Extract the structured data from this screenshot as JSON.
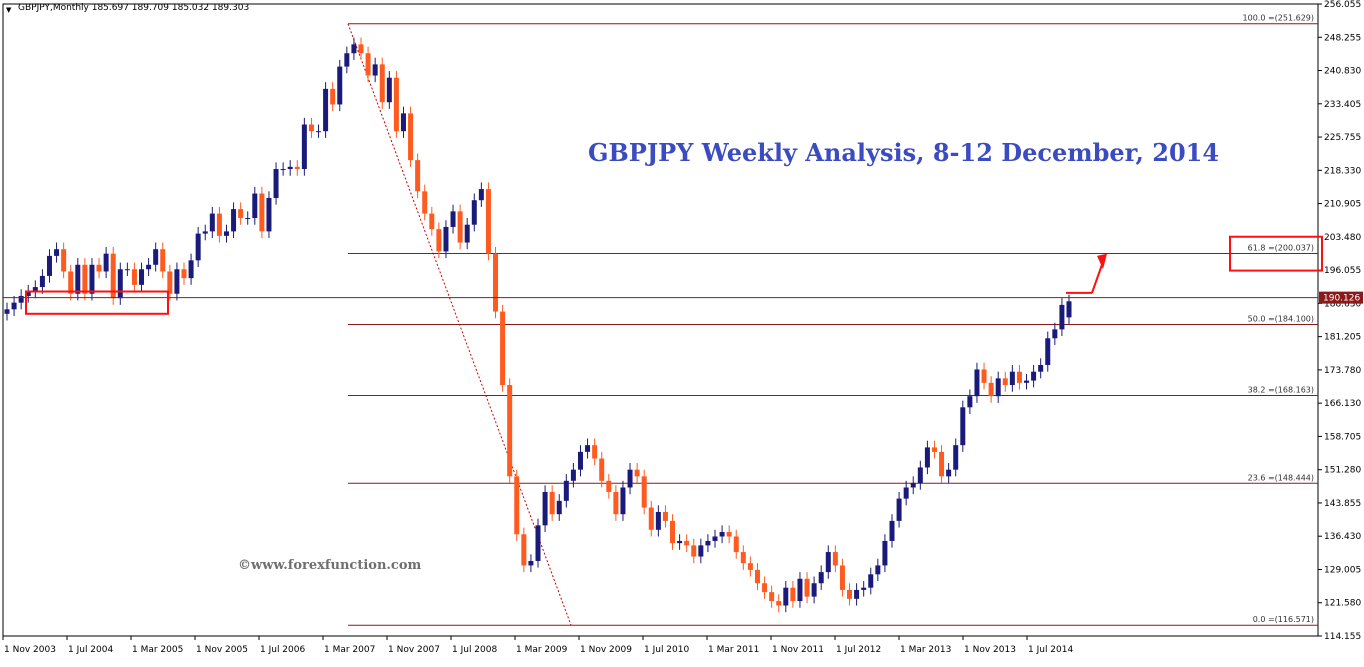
{
  "header": {
    "symbol_info": "GBPJPY,Monthly  185.697 189.709 185.032 189.303"
  },
  "title": "GBPJPY Weekly Analysis, 8-12 December, 2014",
  "watermark": "©www.forexfunction.com",
  "colors": {
    "bull": "#1a1a7a",
    "bear": "#ff5a1f",
    "fib": "#8b1a1a",
    "accent": "#ff1010",
    "title": "#3b4cc0"
  },
  "chart_data": {
    "type": "candlestick",
    "ylim": [
      114.155,
      256.055
    ],
    "y_ticks": [
      "256.055",
      "248.255",
      "240.830",
      "233.405",
      "225.755",
      "218.330",
      "210.905",
      "203.480",
      "196.055",
      "188.630",
      "181.205",
      "173.780",
      "166.130",
      "158.705",
      "151.280",
      "143.855",
      "136.430",
      "129.005",
      "121.580",
      "114.155"
    ],
    "x_ticks": [
      "1 Nov 2003",
      "1 Jul 2004",
      "1 Mar 2005",
      "1 Nov 2005",
      "1 Jul 2006",
      "1 Mar 2007",
      "1 Nov 2007",
      "1 Jul 2008",
      "1 Mar 2009",
      "1 Nov 2009",
      "1 Jul 2010",
      "1 Mar 2011",
      "1 Nov 2011",
      "1 Jul 2012",
      "1 Mar 2013",
      "1 Nov 2013",
      "1 Jul 2014"
    ],
    "current_price_label": "190.126",
    "fib_levels": [
      {
        "label": "100.0 =(251.629)",
        "value": 251.629
      },
      {
        "label": "61.8 =(200.037)",
        "value": 200.037
      },
      {
        "label": "50.0 =(184.100)",
        "value": 184.1
      },
      {
        "label": "38.2 =(168.163)",
        "value": 168.163
      },
      {
        "label": "23.6 =(148.444)",
        "value": 148.444
      },
      {
        "label": "0.0 =(116.571)",
        "value": 116.571
      }
    ],
    "closes": [
      187.5,
      189,
      190.5,
      191.5,
      192.5,
      195,
      199.5,
      201,
      196,
      191,
      197.5,
      191,
      197.5,
      196,
      200,
      190,
      196.5,
      196.5,
      193,
      196.5,
      197.5,
      201,
      196,
      191,
      196.5,
      194.5,
      198.5,
      204.5,
      205,
      209,
      204,
      205,
      210,
      208,
      208,
      213.5,
      205,
      212.5,
      219,
      219,
      219.5,
      219,
      229,
      227.5,
      227.5,
      237,
      233.5,
      242,
      245,
      247,
      245,
      240,
      242.5,
      234,
      239.5,
      227.5,
      231.5,
      221,
      214,
      209,
      205.5,
      200.5,
      206,
      209.5,
      202.5,
      206.5,
      212,
      214.5,
      200,
      187,
      170.5,
      150,
      137,
      130,
      131,
      139,
      146.5,
      141.5,
      144.5,
      149,
      151.5,
      155.5,
      157,
      154,
      149,
      146.5,
      141.5,
      147.5,
      151.5,
      150,
      143,
      138,
      142,
      140,
      135,
      135.5,
      134.5,
      132,
      134.5,
      135.5,
      136.5,
      137.5,
      136.5,
      133,
      130.5,
      129,
      126,
      124,
      122,
      121,
      125,
      122,
      127,
      123,
      126,
      128.5,
      133,
      130,
      124.5,
      122.5,
      124.5,
      125,
      128,
      130,
      135.5,
      140,
      145,
      147.5,
      148.5,
      152,
      156.5,
      155.5,
      150,
      151.5,
      157,
      165.5,
      168,
      174,
      171,
      168,
      172,
      170.5,
      173.5,
      171,
      171.5,
      173.5,
      175,
      181,
      183,
      188.5,
      189.3
    ],
    "opens": [
      186.5,
      187.5,
      189,
      190.5,
      191.5,
      192.5,
      195,
      199.5,
      201,
      196,
      191,
      197.5,
      191,
      197.5,
      196,
      200,
      190,
      196.5,
      196.5,
      193,
      196.5,
      197.5,
      201,
      196,
      191,
      196.5,
      194.5,
      198.5,
      204.5,
      205,
      209,
      204,
      205,
      210,
      208,
      208,
      213.5,
      205,
      212.5,
      219,
      219,
      219.5,
      219,
      229,
      227.5,
      227.5,
      237,
      233.5,
      242,
      245,
      247,
      245,
      240,
      242.5,
      234,
      239.5,
      227.5,
      231.5,
      221,
      214,
      209,
      205.5,
      200.5,
      206,
      209.5,
      202.5,
      206.5,
      212,
      214.5,
      200,
      187,
      170.5,
      150,
      137,
      130,
      131,
      139,
      146.5,
      141.5,
      144.5,
      149,
      151.5,
      155.5,
      157,
      154,
      149,
      146.5,
      141.5,
      147.5,
      151.5,
      150,
      143,
      138,
      142,
      140,
      135,
      135.5,
      134.5,
      132,
      134.5,
      135.5,
      136.5,
      137.5,
      136.5,
      133,
      130.5,
      129,
      126,
      124,
      122,
      121,
      125,
      122,
      127,
      123,
      126,
      128.5,
      133,
      130,
      124.5,
      122.5,
      124.5,
      125,
      128,
      130,
      135.5,
      140,
      145,
      147.5,
      148.5,
      152,
      156.5,
      155.5,
      150,
      151.5,
      157,
      165.5,
      168,
      174,
      171,
      168,
      172,
      170.5,
      173.5,
      171,
      171.5,
      173.5,
      175,
      181,
      183,
      185.7
    ]
  }
}
